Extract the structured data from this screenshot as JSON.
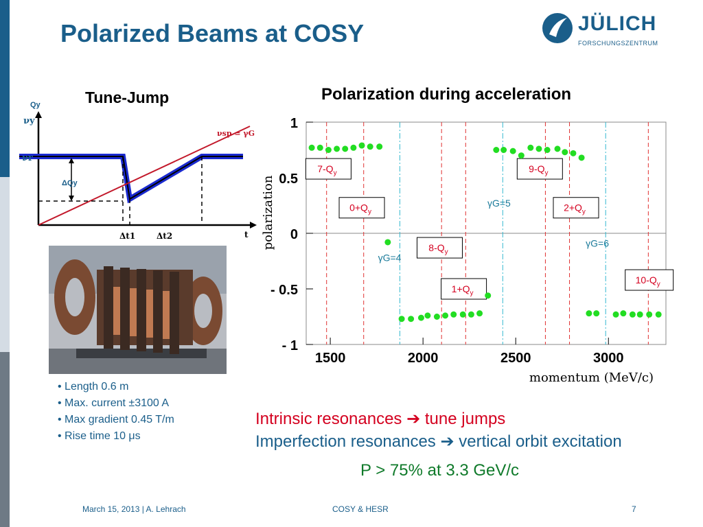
{
  "slide": {
    "title": "Polarized Beams at COSY",
    "logo_name": "JÜLICH",
    "logo_sub": "FORSCHUNGSZENTRUM"
  },
  "tune_jump": {
    "title": "Tune-Jump",
    "label_qy": "Qy",
    "label_nuy": "νy",
    "label_nur": "νr",
    "label_dqy": "ΔQy",
    "label_nusp": "νsp = γG",
    "label_dt1": "Δt1",
    "label_dt2": "Δt2",
    "label_t": "t"
  },
  "magnet_specs": [
    "• Length 0.6 m",
    "• Max. current ±3100 A",
    "• Max gradient 0.45 T/m",
    "• Rise time 10 μs"
  ],
  "resonance_text": {
    "line1_a": "Intrinsic resonances",
    "line1_b": "tune jumps",
    "line2_a": "Imperfection resonances",
    "line2_b": "vertical orbit excitation",
    "arrow": "➔"
  },
  "summary": "P > 75% at 3.3 GeV/c",
  "footer": {
    "date_author": "March 15, 2013 | A. Lehrach",
    "center": "COSY & HESR",
    "page": "7"
  },
  "colors": {
    "brand_blue": "#1a5e8a",
    "red": "#d4001f",
    "green": "#0f7a2a",
    "data_green": "#22dd22",
    "cyan_line": "#33b8d0"
  },
  "chart_data": {
    "type": "scatter",
    "title": "Polarization during acceleration",
    "xlabel": "momentum (MeV/c)",
    "ylabel": "polarization",
    "xlim": [
      1370,
      3310
    ],
    "ylim": [
      -1,
      1
    ],
    "xticks": [
      1500,
      2000,
      2500,
      3000
    ],
    "yticks": [
      1,
      0.5,
      0,
      -0.5,
      -1
    ],
    "ytick_labels": [
      "1",
      "0.5",
      "0",
      "- 0.5",
      "- 1"
    ],
    "grid": false,
    "series": [
      {
        "x": [
          1400,
          1445,
          1490,
          1535,
          1580,
          1625,
          1670,
          1715,
          1765,
          1810,
          1885,
          1935,
          1990,
          2025,
          2075,
          2120,
          2165,
          2215,
          2260,
          2305,
          2350,
          2395,
          2435,
          2485,
          2530,
          2580,
          2625,
          2670,
          2725,
          2765,
          2810,
          2855,
          2895,
          2935,
          3040,
          3080,
          3130,
          3170,
          3220,
          3270
        ],
        "y": [
          0.77,
          0.77,
          0.75,
          0.76,
          0.76,
          0.77,
          0.79,
          0.78,
          0.78,
          -0.08,
          -0.77,
          -0.77,
          -0.76,
          -0.74,
          -0.75,
          -0.74,
          -0.73,
          -0.73,
          -0.73,
          -0.72,
          -0.56,
          0.75,
          0.75,
          0.74,
          0.7,
          0.77,
          0.76,
          0.75,
          0.76,
          0.73,
          0.72,
          0.68,
          -0.72,
          -0.72,
          -0.73,
          -0.72,
          -0.73,
          -0.73,
          -0.73,
          -0.73
        ]
      }
    ],
    "red_lines": [
      1480,
      1680,
      2100,
      2230,
      2660,
      2790,
      3215
    ],
    "cyan_lines": [
      1875,
      2430,
      2985
    ],
    "boxed_labels": [
      {
        "main": "7-Q",
        "sub": "y",
        "x": 1490,
        "y": 0.58
      },
      {
        "main": "0+Q",
        "sub": "y",
        "x": 1670,
        "y": 0.23
      },
      {
        "main": "8-Q",
        "sub": "y",
        "x": 2090,
        "y": -0.13
      },
      {
        "main": "1+Q",
        "sub": "y",
        "x": 2220,
        "y": -0.5
      },
      {
        "main": "9-Q",
        "sub": "y",
        "x": 2630,
        "y": 0.58
      },
      {
        "main": "2+Q",
        "sub": "y",
        "x": 2825,
        "y": 0.23
      },
      {
        "main": "10-Q",
        "sub": "y",
        "x": 3220,
        "y": -0.42
      }
    ],
    "plain_labels": [
      {
        "text": "γG=4",
        "x": 1820,
        "y": -0.25
      },
      {
        "text": "γG=5",
        "x": 2410,
        "y": 0.24
      },
      {
        "text": "γG=6",
        "x": 2940,
        "y": -0.12
      }
    ]
  }
}
